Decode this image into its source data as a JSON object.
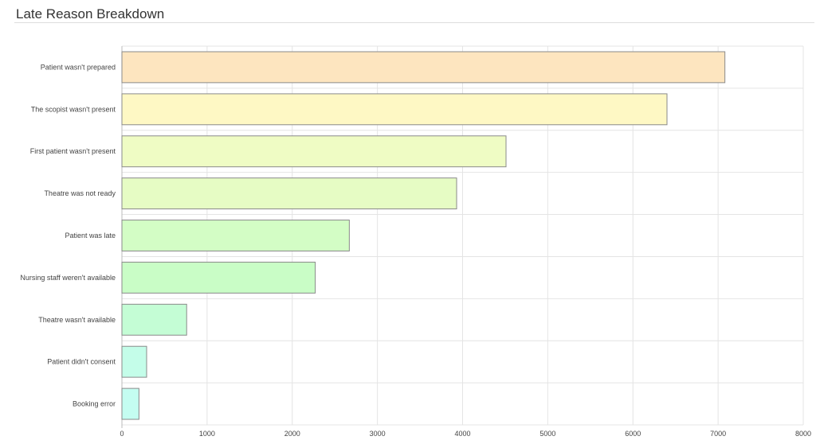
{
  "header": {
    "title": "Late Reason Breakdown"
  },
  "chart_data": {
    "type": "bar",
    "orientation": "horizontal",
    "title": "",
    "xlabel": "",
    "ylabel": "",
    "xlim": [
      0,
      8000
    ],
    "x_ticks": [
      "0",
      "1000",
      "2000",
      "3000",
      "4000",
      "5000",
      "6000",
      "7000",
      "8000"
    ],
    "grid": true,
    "categories": [
      "Patient wasn't prepared",
      "The scopist wasn't present",
      "First patient wasn't present",
      "Theatre was not ready",
      "Patient was late",
      "Nursing staff weren't available",
      "Theatre wasn't available",
      "Patient didn't consent",
      "Booking error"
    ],
    "values": [
      7080,
      6400,
      4510,
      3930,
      2670,
      2270,
      760,
      290,
      200
    ],
    "colors": [
      "#fde5bf",
      "#fef8c4",
      "#effcc4",
      "#e6fcc4",
      "#d3fdc5",
      "#c9fdc6",
      "#c4fdd5",
      "#c4fde9",
      "#c4fdf1"
    ]
  }
}
